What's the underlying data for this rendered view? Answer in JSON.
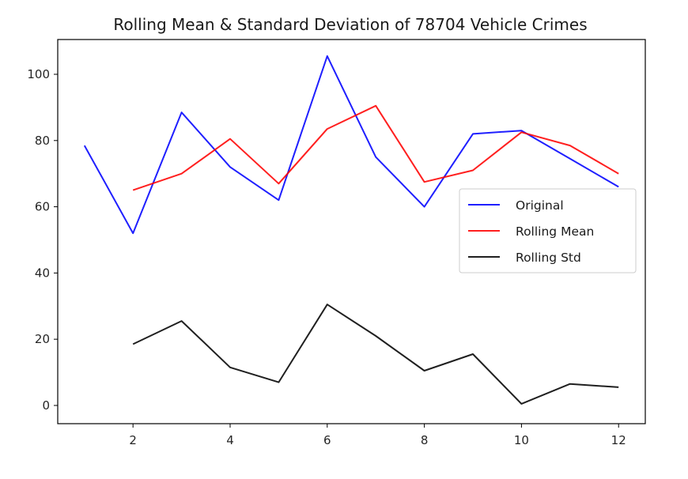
{
  "chart_data": {
    "type": "line",
    "title": "Rolling Mean & Standard Deviation of 78704 Vehicle Crimes",
    "xlabel": "",
    "ylabel": "",
    "xlim": [
      0.45,
      12.55
    ],
    "ylim": [
      -5.5,
      110.5
    ],
    "xticks": [
      2,
      4,
      6,
      8,
      10,
      12
    ],
    "yticks": [
      0,
      20,
      40,
      60,
      80,
      100
    ],
    "grid": false,
    "legend_position": "center-right",
    "series": [
      {
        "name": "Original",
        "color": "#0000ff",
        "x": [
          1,
          2,
          3,
          4,
          5,
          6,
          7,
          8,
          9,
          10,
          11,
          12
        ],
        "y": [
          78.5,
          52,
          88.5,
          72,
          62,
          105.5,
          75,
          60,
          82,
          83,
          74.5,
          66
        ]
      },
      {
        "name": "Rolling Mean",
        "color": "#ff0000",
        "x": [
          2,
          3,
          4,
          5,
          6,
          7,
          8,
          9,
          10,
          11,
          12
        ],
        "y": [
          65,
          70,
          80.5,
          67,
          83.5,
          90.5,
          67.5,
          71,
          82.5,
          78.5,
          70
        ]
      },
      {
        "name": "Rolling Std",
        "color": "#000000",
        "x": [
          2,
          3,
          4,
          5,
          6,
          7,
          8,
          9,
          10,
          11,
          12
        ],
        "y": [
          18.5,
          25.5,
          11.5,
          7,
          30.5,
          21,
          10.5,
          15.5,
          0.5,
          6.5,
          5.5
        ]
      }
    ]
  }
}
